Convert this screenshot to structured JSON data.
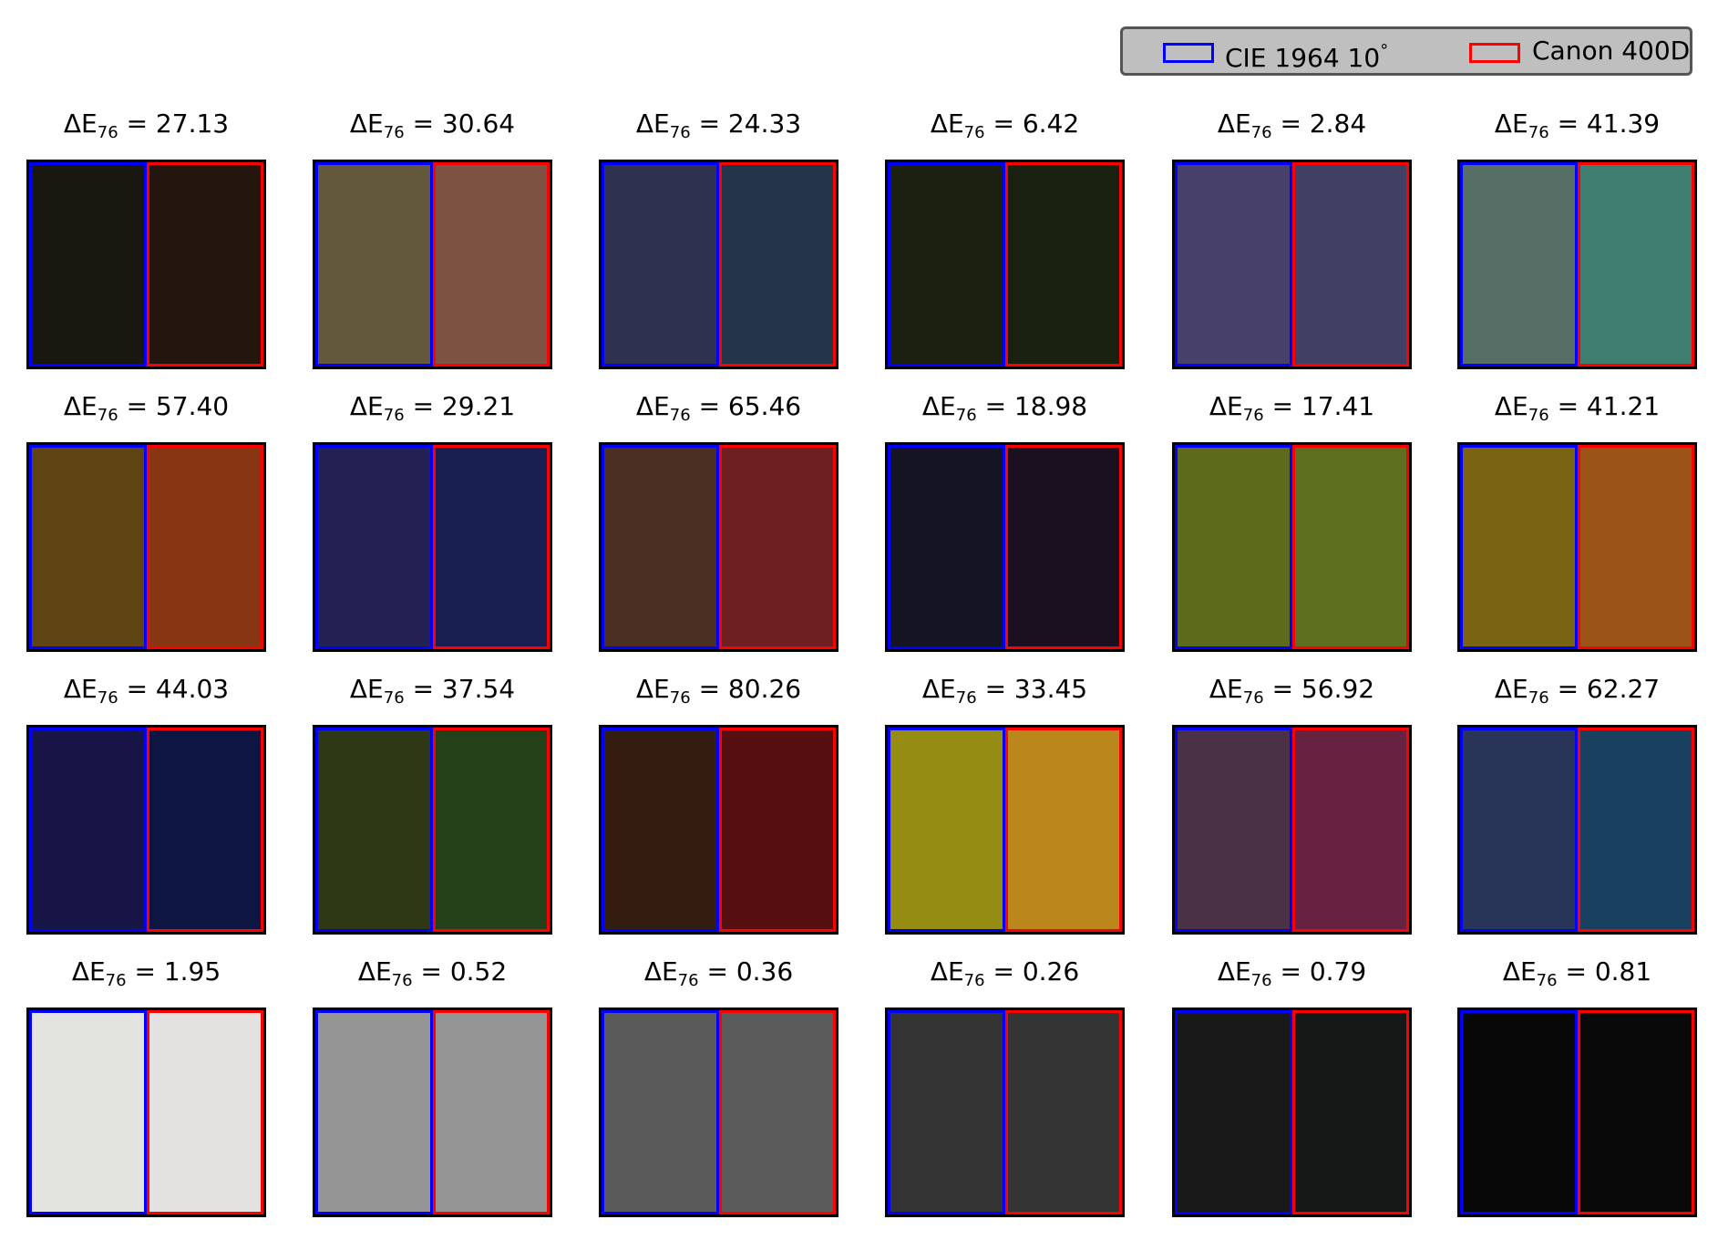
{
  "legend": {
    "entries": [
      {
        "label": "CIE 1964 10",
        "suffix": "°",
        "color": "#0000ff"
      },
      {
        "label": "Canon 400D",
        "suffix": "",
        "color": "#ff0000"
      }
    ],
    "background": "#bfbfbf"
  },
  "chart_data": {
    "type": "other",
    "grid": {
      "rows": 4,
      "cols": 6
    },
    "title_prefix": "ΔE",
    "title_subscript": "76",
    "title_separator": " = ",
    "series": [
      {
        "name": "CIE 1964 10°",
        "outline": "#0000ff"
      },
      {
        "name": "Canon 400D",
        "outline": "#ff0000"
      }
    ],
    "patches": [
      {
        "delta_e": "27.13",
        "left": "#191810",
        "right": "#24150f"
      },
      {
        "delta_e": "30.64",
        "left": "#63573c",
        "right": "#7d5242"
      },
      {
        "delta_e": "24.33",
        "left": "#2f3150",
        "right": "#23344b"
      },
      {
        "delta_e": "6.42",
        "left": "#1c2010",
        "right": "#1b2110"
      },
      {
        "delta_e": "2.84",
        "left": "#46406a",
        "right": "#3f4063"
      },
      {
        "delta_e": "41.39",
        "left": "#566e66",
        "right": "#407d71"
      },
      {
        "delta_e": "57.40",
        "left": "#5f4513",
        "right": "#883513"
      },
      {
        "delta_e": "29.21",
        "left": "#232053",
        "right": "#191f50"
      },
      {
        "delta_e": "65.46",
        "left": "#4a2f22",
        "right": "#6e1f22"
      },
      {
        "delta_e": "18.98",
        "left": "#141424",
        "right": "#1b1020"
      },
      {
        "delta_e": "17.41",
        "left": "#5d6a1c",
        "right": "#5e6f20"
      },
      {
        "delta_e": "41.21",
        "left": "#7b6314",
        "right": "#9b5416"
      },
      {
        "delta_e": "44.03",
        "left": "#171545",
        "right": "#0d1543"
      },
      {
        "delta_e": "37.54",
        "left": "#2e3815",
        "right": "#234018"
      },
      {
        "delta_e": "80.26",
        "left": "#331c10",
        "right": "#560e10"
      },
      {
        "delta_e": "33.45",
        "left": "#958c14",
        "right": "#bb871c"
      },
      {
        "delta_e": "56.92",
        "left": "#4b3146",
        "right": "#662240"
      },
      {
        "delta_e": "62.27",
        "left": "#293459",
        "right": "#1a405f"
      },
      {
        "delta_e": "1.95",
        "left": "#e3e3e0",
        "right": "#e4e2e1"
      },
      {
        "delta_e": "0.52",
        "left": "#959595",
        "right": "#959595"
      },
      {
        "delta_e": "0.36",
        "left": "#5a5a5a",
        "right": "#5b5b5b"
      },
      {
        "delta_e": "0.26",
        "left": "#333333",
        "right": "#343434"
      },
      {
        "delta_e": "0.79",
        "left": "#181818",
        "right": "#161717"
      },
      {
        "delta_e": "0.81",
        "left": "#080808",
        "right": "#080908"
      }
    ]
  }
}
